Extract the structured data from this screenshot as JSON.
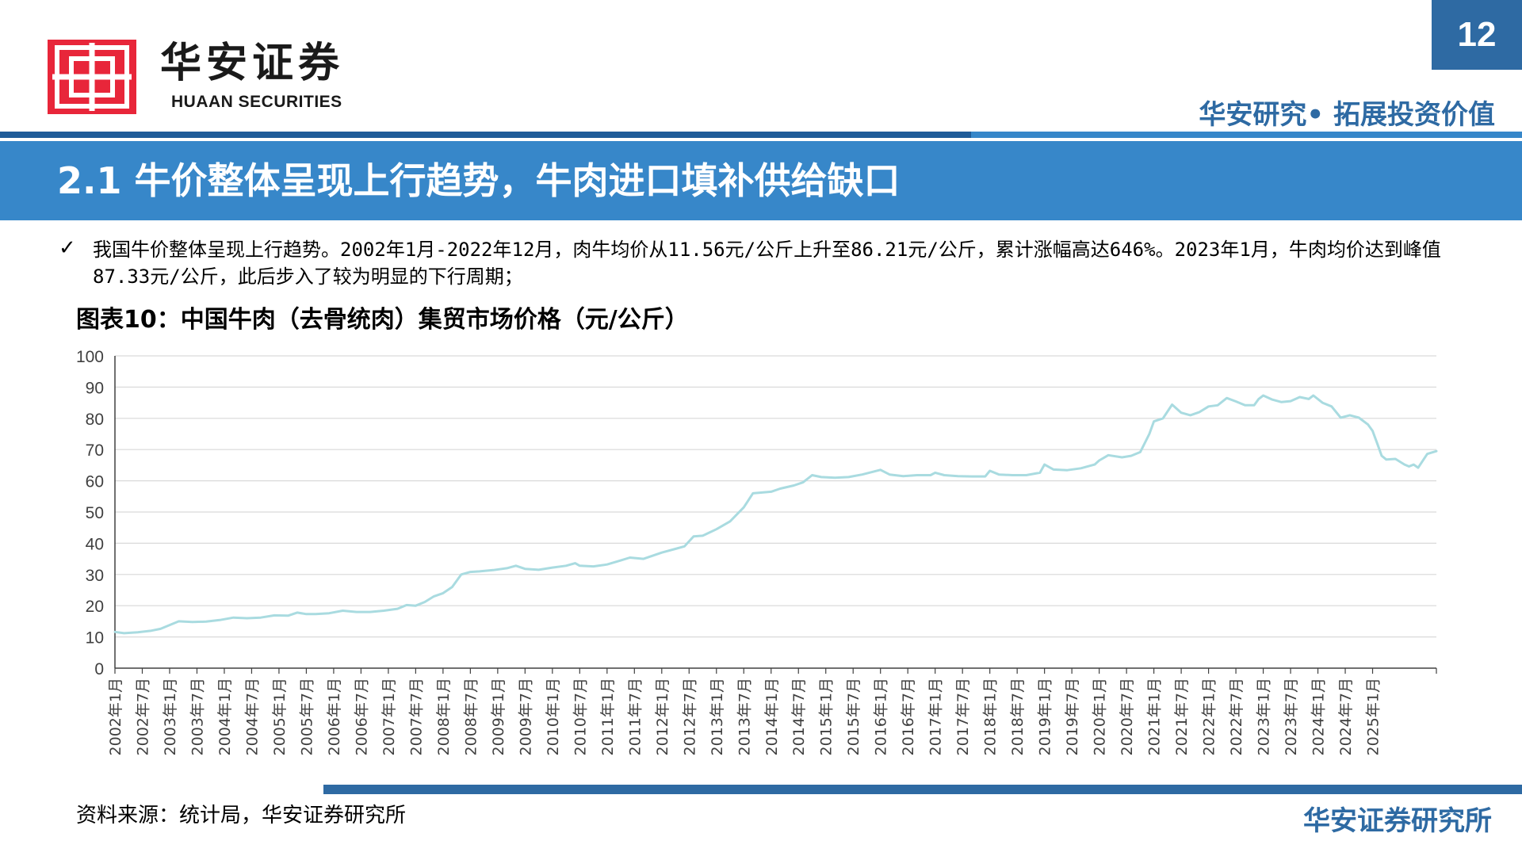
{
  "header": {
    "logo_cn": "华安证券",
    "logo_en": "HUAAN SECURITIES",
    "page_number": "12",
    "slogan": "华安研究• 拓展投资价值"
  },
  "section_title": "2.1 牛价整体呈现上行趋势，牛肉进口填补供给缺口",
  "bullet": {
    "icon": "check-icon",
    "text": "我国牛价整体呈现上行趋势。2002年1月-2022年12月，肉牛均价从11.56元/公斤上升至86.21元/公斤，累计涨幅高达646%。2023年1月，牛肉均价达到峰值87.33元/公斤，此后步入了较为明显的下行周期；"
  },
  "figure_title": "图表10：中国牛肉（去骨统肉）集贸市场价格（元/公斤）",
  "source": "资料来源：统计局，华安证券研究所",
  "footer_brand": "华安证券研究所",
  "colors": {
    "logo_red": "#e8263a",
    "brand_blue": "#2e6aa3",
    "title_bar_blue": "#3787c9",
    "line_color": "#a9dbe0"
  },
  "chart_data": {
    "type": "line",
    "title": "",
    "xlabel": "",
    "ylabel": "",
    "ylim": [
      0,
      100
    ],
    "yticks": [
      0,
      10,
      20,
      30,
      40,
      50,
      60,
      70,
      80,
      90,
      100
    ],
    "grid": true,
    "legend": "none",
    "x_tick_labels": [
      "2002年1月",
      "2002年7月",
      "2003年1月",
      "2003年7月",
      "2004年1月",
      "2004年7月",
      "2005年1月",
      "2005年7月",
      "2006年1月",
      "2006年7月",
      "2007年1月",
      "2007年7月",
      "2008年1月",
      "2008年7月",
      "2009年1月",
      "2009年7月",
      "2010年1月",
      "2010年7月",
      "2011年1月",
      "2011年7月",
      "2012年1月",
      "2012年7月",
      "2013年1月",
      "2013年7月",
      "2014年1月",
      "2014年7月",
      "2015年1月",
      "2015年7月",
      "2016年1月",
      "2016年7月",
      "2017年1月",
      "2017年7月",
      "2018年1月",
      "2018年7月",
      "2019年1月",
      "2019年7月",
      "2020年1月",
      "2020年7月",
      "2021年1月",
      "2021年7月",
      "2022年1月",
      "2022年7月",
      "2023年1月",
      "2023年7月",
      "2024年1月",
      "2024年7月",
      "2025年1月"
    ],
    "series": [
      {
        "name": "",
        "points": [
          [
            "2002-01",
            11.6
          ],
          [
            "2002-03",
            11.2
          ],
          [
            "2002-06",
            11.5
          ],
          [
            "2002-09",
            12.0
          ],
          [
            "2002-11",
            12.6
          ],
          [
            "2003-01",
            13.8
          ],
          [
            "2003-03",
            15.0
          ],
          [
            "2003-06",
            14.8
          ],
          [
            "2003-09",
            14.9
          ],
          [
            "2003-12",
            15.4
          ],
          [
            "2004-03",
            16.2
          ],
          [
            "2004-06",
            16.0
          ],
          [
            "2004-09",
            16.2
          ],
          [
            "2004-12",
            16.9
          ],
          [
            "2005-03",
            16.8
          ],
          [
            "2005-05",
            17.8
          ],
          [
            "2005-07",
            17.3
          ],
          [
            "2005-09",
            17.3
          ],
          [
            "2005-12",
            17.6
          ],
          [
            "2006-03",
            18.4
          ],
          [
            "2006-06",
            18.0
          ],
          [
            "2006-09",
            18.0
          ],
          [
            "2006-12",
            18.4
          ],
          [
            "2007-03",
            19.0
          ],
          [
            "2007-05",
            20.2
          ],
          [
            "2007-07",
            20.0
          ],
          [
            "2007-09",
            21.2
          ],
          [
            "2007-11",
            23.0
          ],
          [
            "2008-01",
            24.0
          ],
          [
            "2008-03",
            26.0
          ],
          [
            "2008-05",
            30.0
          ],
          [
            "2008-07",
            30.8
          ],
          [
            "2008-09",
            31.0
          ],
          [
            "2008-12",
            31.4
          ],
          [
            "2009-03",
            32.0
          ],
          [
            "2009-05",
            32.8
          ],
          [
            "2009-07",
            31.8
          ],
          [
            "2009-10",
            31.5
          ],
          [
            "2010-01",
            32.2
          ],
          [
            "2010-04",
            32.8
          ],
          [
            "2010-06",
            33.6
          ],
          [
            "2010-07",
            32.8
          ],
          [
            "2010-10",
            32.6
          ],
          [
            "2011-01",
            33.2
          ],
          [
            "2011-04",
            34.5
          ],
          [
            "2011-06",
            35.4
          ],
          [
            "2011-09",
            35.0
          ],
          [
            "2012-01",
            37.0
          ],
          [
            "2012-04",
            38.2
          ],
          [
            "2012-06",
            39.0
          ],
          [
            "2012-08",
            42.2
          ],
          [
            "2012-10",
            42.4
          ],
          [
            "2013-01",
            44.5
          ],
          [
            "2013-04",
            47.0
          ],
          [
            "2013-07",
            51.5
          ],
          [
            "2013-09",
            56.0
          ],
          [
            "2014-01",
            56.5
          ],
          [
            "2014-03",
            57.5
          ],
          [
            "2014-06",
            58.5
          ],
          [
            "2014-08",
            59.5
          ],
          [
            "2014-10",
            61.8
          ],
          [
            "2014-12",
            61.2
          ],
          [
            "2015-03",
            61.0
          ],
          [
            "2015-06",
            61.2
          ],
          [
            "2015-09",
            62.0
          ],
          [
            "2016-01",
            63.5
          ],
          [
            "2016-03",
            62.0
          ],
          [
            "2016-06",
            61.5
          ],
          [
            "2016-09",
            61.8
          ],
          [
            "2016-12",
            61.8
          ],
          [
            "2017-01",
            62.6
          ],
          [
            "2017-03",
            61.8
          ],
          [
            "2017-06",
            61.5
          ],
          [
            "2017-09",
            61.4
          ],
          [
            "2017-12",
            61.4
          ],
          [
            "2018-01",
            63.2
          ],
          [
            "2018-03",
            62.0
          ],
          [
            "2018-06",
            61.8
          ],
          [
            "2018-09",
            61.8
          ],
          [
            "2018-12",
            62.6
          ],
          [
            "2019-01",
            65.2
          ],
          [
            "2019-03",
            63.6
          ],
          [
            "2019-06",
            63.4
          ],
          [
            "2019-09",
            64.0
          ],
          [
            "2019-12",
            65.2
          ],
          [
            "2020-01",
            66.5
          ],
          [
            "2020-03",
            68.2
          ],
          [
            "2020-06",
            67.5
          ],
          [
            "2020-08",
            68.0
          ],
          [
            "2020-10",
            69.2
          ],
          [
            "2020-12",
            75.0
          ],
          [
            "2021-01",
            79.0
          ],
          [
            "2021-03",
            80.0
          ],
          [
            "2021-05",
            84.4
          ],
          [
            "2021-07",
            81.8
          ],
          [
            "2021-09",
            81.0
          ],
          [
            "2021-11",
            82.0
          ],
          [
            "2022-01",
            83.8
          ],
          [
            "2022-03",
            84.2
          ],
          [
            "2022-05",
            86.5
          ],
          [
            "2022-07",
            85.4
          ],
          [
            "2022-09",
            84.2
          ],
          [
            "2022-11",
            84.2
          ],
          [
            "2022-12",
            86.2
          ],
          [
            "2023-01",
            87.3
          ],
          [
            "2023-03",
            86.0
          ],
          [
            "2023-05",
            85.2
          ],
          [
            "2023-07",
            85.5
          ],
          [
            "2023-09",
            86.8
          ],
          [
            "2023-11",
            86.2
          ],
          [
            "2023-12",
            87.3
          ],
          [
            "2024-02",
            85.0
          ],
          [
            "2024-04",
            83.8
          ],
          [
            "2024-06",
            80.2
          ],
          [
            "2024-08",
            81.0
          ],
          [
            "2024-10",
            80.2
          ],
          [
            "2024-12",
            78.0
          ],
          [
            "2025-01",
            76.0
          ],
          [
            "2025-02",
            72.0
          ],
          [
            "2025-03",
            68.0
          ],
          [
            "2025-04",
            66.8
          ],
          [
            "2025-06",
            67.0
          ],
          [
            "2025-08",
            65.2
          ],
          [
            "2025-09",
            64.6
          ],
          [
            "2025-10",
            65.2
          ],
          [
            "2025-11",
            64.2
          ],
          [
            "2026-01",
            68.6
          ],
          [
            "2026-03",
            69.5
          ]
        ]
      }
    ]
  }
}
